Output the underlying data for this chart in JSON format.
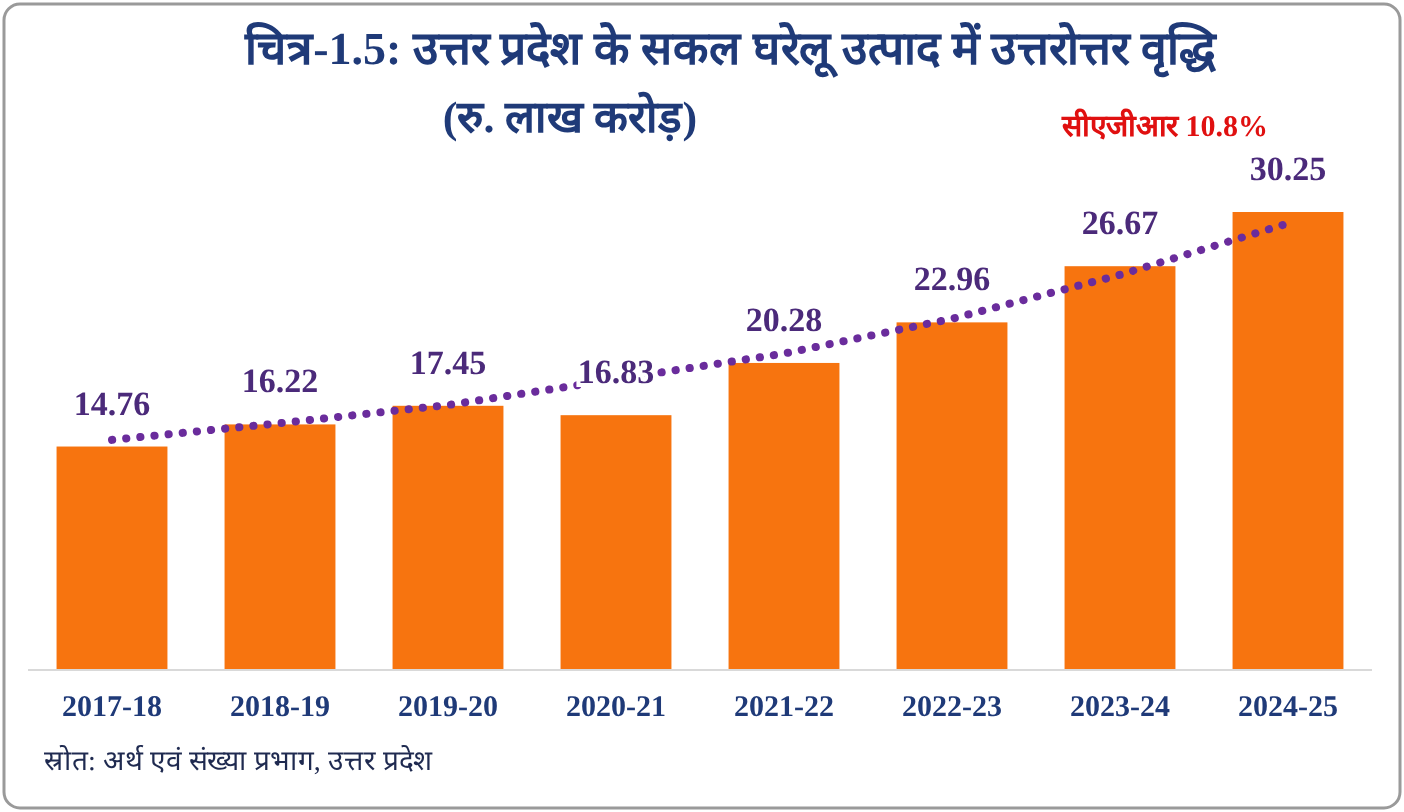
{
  "chart_data": {
    "type": "bar",
    "title": "चित्र-1.5: उत्तर प्रदेश के सकल घरेलू उत्पाद में उत्तरोत्तर वृद्धि",
    "subtitle": "(रु. लाख करोड़)",
    "categories": [
      "2017-18",
      "2018-19",
      "2019-20",
      "2020-21",
      "2021-22",
      "2022-23",
      "2023-24",
      "2024-25"
    ],
    "series": [
      {
        "color": "#f7740f",
        "values": [
          14.76,
          16.22,
          17.45,
          16.83,
          20.28,
          22.96,
          26.67,
          30.25
        ],
        "value_labels": [
          "14.76",
          "16.22",
          "17.45",
          "16.83",
          "20.28",
          "22.96",
          "26.67",
          "30.25"
        ]
      },
      {
        "type": "line",
        "color": "#6a2c9c",
        "line_style": "dotted",
        "values": [
          15.2,
          16.3,
          17.5,
          19.2,
          20.9,
          23.2,
          26.1,
          29.5
        ]
      }
    ],
    "annotations": [
      {
        "text": "सीएजीआर 10.8%",
        "x": "2024-25",
        "y": 30.25
      },
      "स्रोत: अर्थ एवं संख्या प्रभाग, उत्तर प्रदेश"
    ]
  }
}
